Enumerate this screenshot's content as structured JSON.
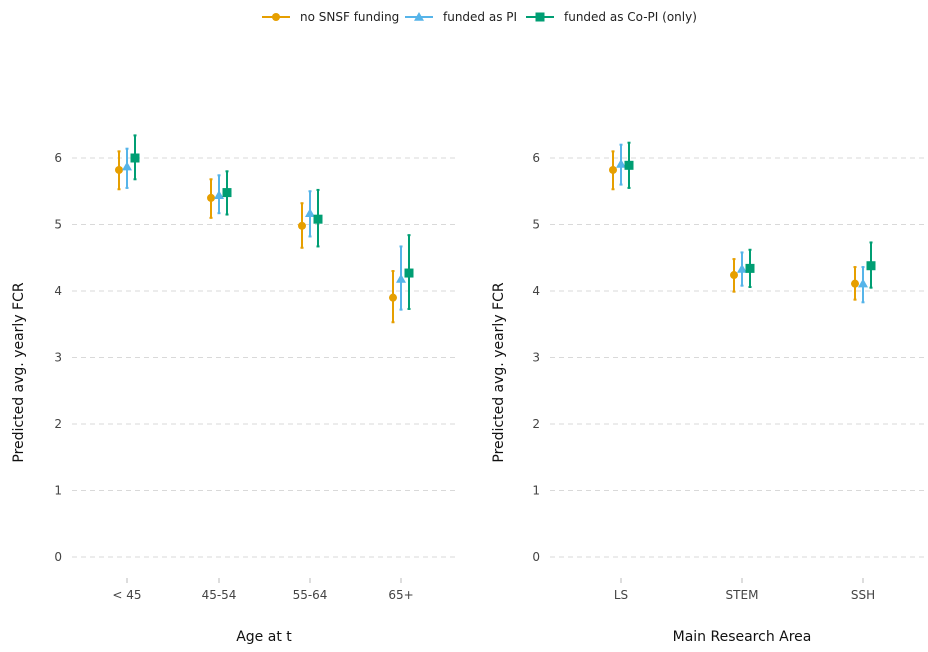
{
  "legend": {
    "items": [
      {
        "label": "no SNSF funding",
        "color": "#E69F00",
        "marker": "circle"
      },
      {
        "label": "funded as PI",
        "color": "#56B4E9",
        "marker": "triangle"
      },
      {
        "label": "funded as Co-PI (only)",
        "color": "#009E73",
        "marker": "square"
      }
    ],
    "placement": "top"
  },
  "chart_data": [
    {
      "type": "scatter",
      "error_bars": true,
      "grid": "horizontal-dashed",
      "xlabel": "Age at t",
      "ylabel": "Predicted avg. yearly FCR",
      "ylim": [
        0,
        6.3
      ],
      "yticks": [
        0,
        1,
        2,
        3,
        4,
        5,
        6
      ],
      "categories": [
        "< 45",
        "45-54",
        "55-64",
        "65+"
      ],
      "series": [
        {
          "name": "no SNSF funding",
          "values": [
            5.82,
            5.4,
            4.98,
            3.9
          ],
          "lower": [
            5.53,
            5.1,
            4.65,
            3.53
          ],
          "upper": [
            6.1,
            5.68,
            5.32,
            4.3
          ]
        },
        {
          "name": "funded as PI",
          "values": [
            5.87,
            5.44,
            5.17,
            4.18
          ],
          "lower": [
            5.55,
            5.17,
            4.82,
            3.72
          ],
          "upper": [
            6.14,
            5.74,
            5.5,
            4.67
          ]
        },
        {
          "name": "funded as Co-PI (only)",
          "values": [
            6.0,
            5.48,
            5.08,
            4.27
          ],
          "lower": [
            5.68,
            5.15,
            4.67,
            3.73
          ],
          "upper": [
            6.34,
            5.8,
            5.52,
            4.84
          ]
        }
      ]
    },
    {
      "type": "scatter",
      "error_bars": true,
      "grid": "horizontal-dashed",
      "xlabel": "Main Research Area",
      "ylabel": "Predicted avg. yearly FCR",
      "ylim": [
        0,
        6.3
      ],
      "yticks": [
        0,
        1,
        2,
        3,
        4,
        5,
        6
      ],
      "categories": [
        "LS",
        "STEM",
        "SSH"
      ],
      "series": [
        {
          "name": "no SNSF funding",
          "values": [
            5.82,
            4.24,
            4.11
          ],
          "lower": [
            5.53,
            3.99,
            3.87
          ],
          "upper": [
            6.1,
            4.48,
            4.36
          ]
        },
        {
          "name": "funded as PI",
          "values": [
            5.91,
            4.33,
            4.11
          ],
          "lower": [
            5.6,
            4.08,
            3.83
          ],
          "upper": [
            6.2,
            4.58,
            4.36
          ]
        },
        {
          "name": "funded as Co-PI (only)",
          "values": [
            5.89,
            4.34,
            4.38
          ],
          "lower": [
            5.55,
            4.06,
            4.05
          ],
          "upper": [
            6.23,
            4.62,
            4.73
          ]
        }
      ]
    }
  ]
}
